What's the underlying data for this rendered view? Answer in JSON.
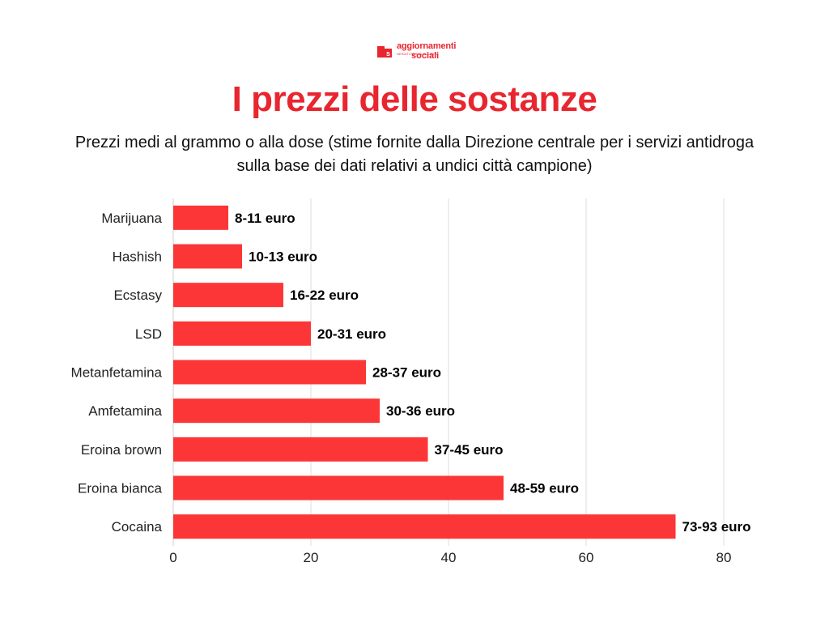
{
  "logo": {
    "line1": "aggiornamenti",
    "line2": "sociali",
    "tagline": "GESUITI PER LA SOCIETÀ"
  },
  "colors": {
    "accent": "#e8262f",
    "bar": "#fc3636",
    "grid": "#dcdcdc"
  },
  "chart_data": {
    "type": "bar",
    "orientation": "horizontal",
    "title": "I prezzi delle sostanze",
    "subtitle": "Prezzi medi al grammo o alla dose (stime fornite dalla Direzione centrale per i servizi antidroga sulla base dei dati relativi a undici città campione)",
    "categories": [
      "Marijuana",
      "Hashish",
      "Ecstasy",
      "LSD",
      "Metanfetamina",
      "Amfetamina",
      "Eroina brown",
      "Eroina bianca",
      "Cocaina"
    ],
    "values": [
      8,
      10,
      16,
      20,
      28,
      30,
      37,
      48,
      73
    ],
    "data_labels": [
      "8-11 euro",
      "10-13 euro",
      "16-22 euro",
      "20-31 euro",
      "28-37 euro",
      "30-36 euro",
      "37-45 euro",
      "48-59 euro",
      "73-93 euro"
    ],
    "xlim": [
      0,
      80
    ],
    "xticks": [
      "0",
      "20",
      "40",
      "60",
      "80"
    ],
    "grid": true,
    "legend": "none"
  }
}
